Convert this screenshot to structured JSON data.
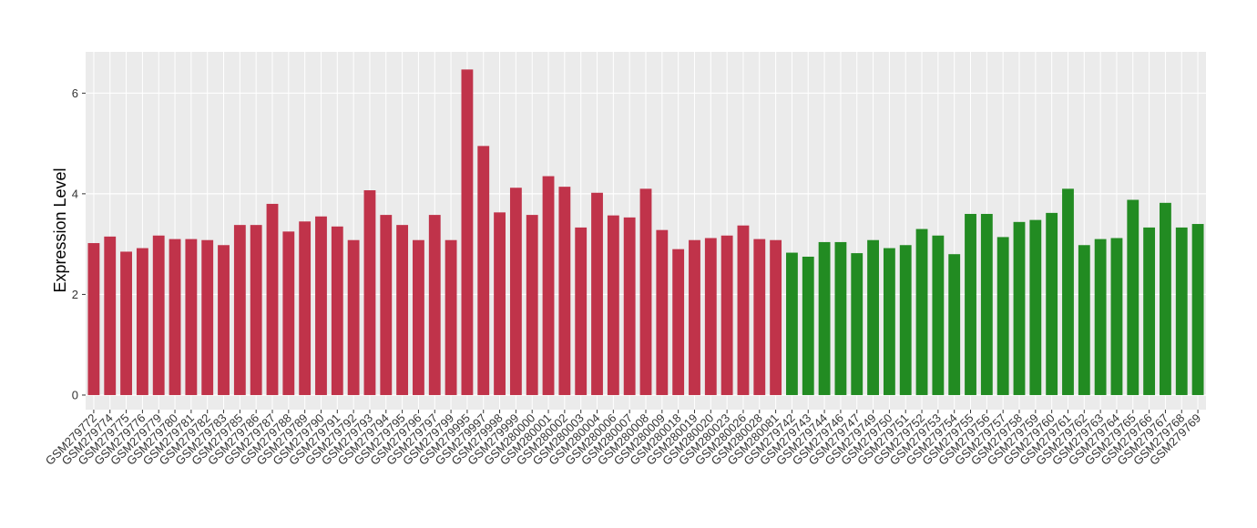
{
  "chart_data": {
    "type": "bar",
    "y_label": "Expression Level",
    "categories": [
      "GSM279772",
      "GSM279774",
      "GSM279775",
      "GSM279776",
      "GSM279779",
      "GSM279780",
      "GSM279781",
      "GSM279782",
      "GSM279783",
      "GSM279785",
      "GSM279786",
      "GSM279787",
      "GSM279788",
      "GSM279789",
      "GSM279790",
      "GSM279791",
      "GSM279792",
      "GSM279793",
      "GSM279794",
      "GSM279795",
      "GSM279796",
      "GSM279797",
      "GSM279799",
      "GSM279995",
      "GSM279997",
      "GSM279998",
      "GSM279999",
      "GSM280000",
      "GSM280001",
      "GSM280002",
      "GSM280003",
      "GSM280004",
      "GSM280006",
      "GSM280007",
      "GSM280008",
      "GSM280009",
      "GSM280018",
      "GSM280019",
      "GSM280020",
      "GSM280023",
      "GSM280026",
      "GSM280028",
      "GSM280081",
      "GSM279742",
      "GSM279743",
      "GSM279744",
      "GSM279746",
      "GSM279747",
      "GSM279749",
      "GSM279750",
      "GSM279751",
      "GSM279752",
      "GSM279753",
      "GSM279754",
      "GSM279755",
      "GSM279756",
      "GSM279757",
      "GSM279758",
      "GSM279759",
      "GSM279760",
      "GSM279761",
      "GSM279762",
      "GSM279763",
      "GSM279764",
      "GSM279765",
      "GSM279766",
      "GSM279767",
      "GSM279768",
      "GSM279769"
    ],
    "values": [
      3.02,
      3.15,
      2.85,
      2.92,
      3.17,
      3.1,
      3.1,
      3.08,
      2.98,
      3.38,
      3.38,
      3.8,
      3.25,
      3.45,
      3.55,
      3.35,
      3.08,
      4.07,
      3.58,
      3.38,
      3.08,
      3.58,
      3.08,
      6.47,
      4.95,
      3.63,
      4.12,
      3.58,
      4.35,
      4.14,
      3.33,
      4.02,
      3.57,
      3.53,
      4.1,
      3.28,
      2.9,
      3.08,
      3.12,
      3.17,
      3.37,
      3.1,
      3.08,
      2.83,
      2.75,
      3.04,
      3.04,
      2.82,
      3.08,
      2.92,
      2.98,
      3.3,
      3.17,
      2.8,
      3.6,
      3.6,
      3.14,
      3.44,
      3.48,
      3.62,
      4.1,
      2.98,
      3.1,
      3.12,
      3.88,
      3.33,
      3.82,
      3.33,
      3.4
    ],
    "colors": [
      "#c0334a",
      "#c0334a",
      "#c0334a",
      "#c0334a",
      "#c0334a",
      "#c0334a",
      "#c0334a",
      "#c0334a",
      "#c0334a",
      "#c0334a",
      "#c0334a",
      "#c0334a",
      "#c0334a",
      "#c0334a",
      "#c0334a",
      "#c0334a",
      "#c0334a",
      "#c0334a",
      "#c0334a",
      "#c0334a",
      "#c0334a",
      "#c0334a",
      "#c0334a",
      "#c0334a",
      "#c0334a",
      "#c0334a",
      "#c0334a",
      "#c0334a",
      "#c0334a",
      "#c0334a",
      "#c0334a",
      "#c0334a",
      "#c0334a",
      "#c0334a",
      "#c0334a",
      "#c0334a",
      "#c0334a",
      "#c0334a",
      "#c0334a",
      "#c0334a",
      "#c0334a",
      "#c0334a",
      "#c0334a",
      "#228b22",
      "#228b22",
      "#228b22",
      "#228b22",
      "#228b22",
      "#228b22",
      "#228b22",
      "#228b22",
      "#228b22",
      "#228b22",
      "#228b22",
      "#228b22",
      "#228b22",
      "#228b22",
      "#228b22",
      "#228b22",
      "#228b22",
      "#228b22",
      "#228b22",
      "#228b22",
      "#228b22",
      "#228b22",
      "#228b22",
      "#228b22",
      "#228b22",
      "#228b22"
    ],
    "ylim": [
      -0.29,
      6.82
    ],
    "yticks": [
      0,
      2,
      4,
      6
    ],
    "grid": true
  }
}
